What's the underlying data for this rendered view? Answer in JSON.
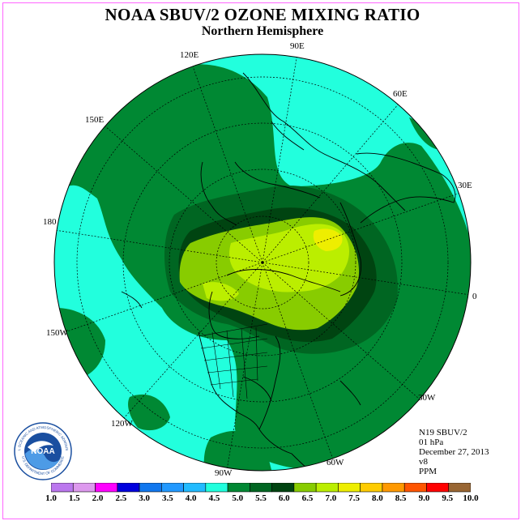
{
  "title": "NOAA SBUV/2 OZONE MIXING RATIO",
  "subtitle": "Northern Hemisphere",
  "longitude_labels": {
    "e90": "90E",
    "e120": "120E",
    "e60": "60E",
    "e150": "150E",
    "e30": "30E",
    "d180": "180",
    "d0": "0",
    "w150": "150W",
    "w30": "30W",
    "w120": "120W",
    "w60": "60W",
    "w90": "90W"
  },
  "info": {
    "satellite": "N19 SBUV/2",
    "pressure": "01 hPa",
    "date": "December 27, 2013",
    "version": "v8",
    "units": "PPM"
  },
  "colorbar": {
    "ticks": [
      "1.0",
      "1.5",
      "2.0",
      "2.5",
      "3.0",
      "3.5",
      "4.0",
      "4.5",
      "5.0",
      "5.5",
      "6.0",
      "6.5",
      "7.0",
      "7.5",
      "8.0",
      "8.5",
      "9.0",
      "9.5",
      "10.0"
    ],
    "colors": [
      "#bb77ee",
      "#dd99ee",
      "#ff00ff",
      "#0000dd",
      "#1177ee",
      "#2299ff",
      "#22bbff",
      "#22ffdd",
      "#008833",
      "#006622",
      "#004411",
      "#88cc00",
      "#bbee00",
      "#eeee00",
      "#ffcc00",
      "#ff9900",
      "#ff5500",
      "#ff0000",
      "#996633"
    ]
  },
  "map_colors": {
    "ocean_level": "#22ffdd",
    "band_5_0": "#008833",
    "band_5_5": "#006622",
    "band_6_0": "#004411",
    "band_6_5": "#88cc00",
    "band_7_0": "#bbee00",
    "band_7_5": "#eeee00"
  },
  "logo": {
    "text": "NOAA",
    "ring_top": "NATIONAL OCEANIC AND ATMOSPHERIC ADMINISTRATION",
    "ring_bottom": "U.S. DEPARTMENT OF COMMERCE"
  }
}
